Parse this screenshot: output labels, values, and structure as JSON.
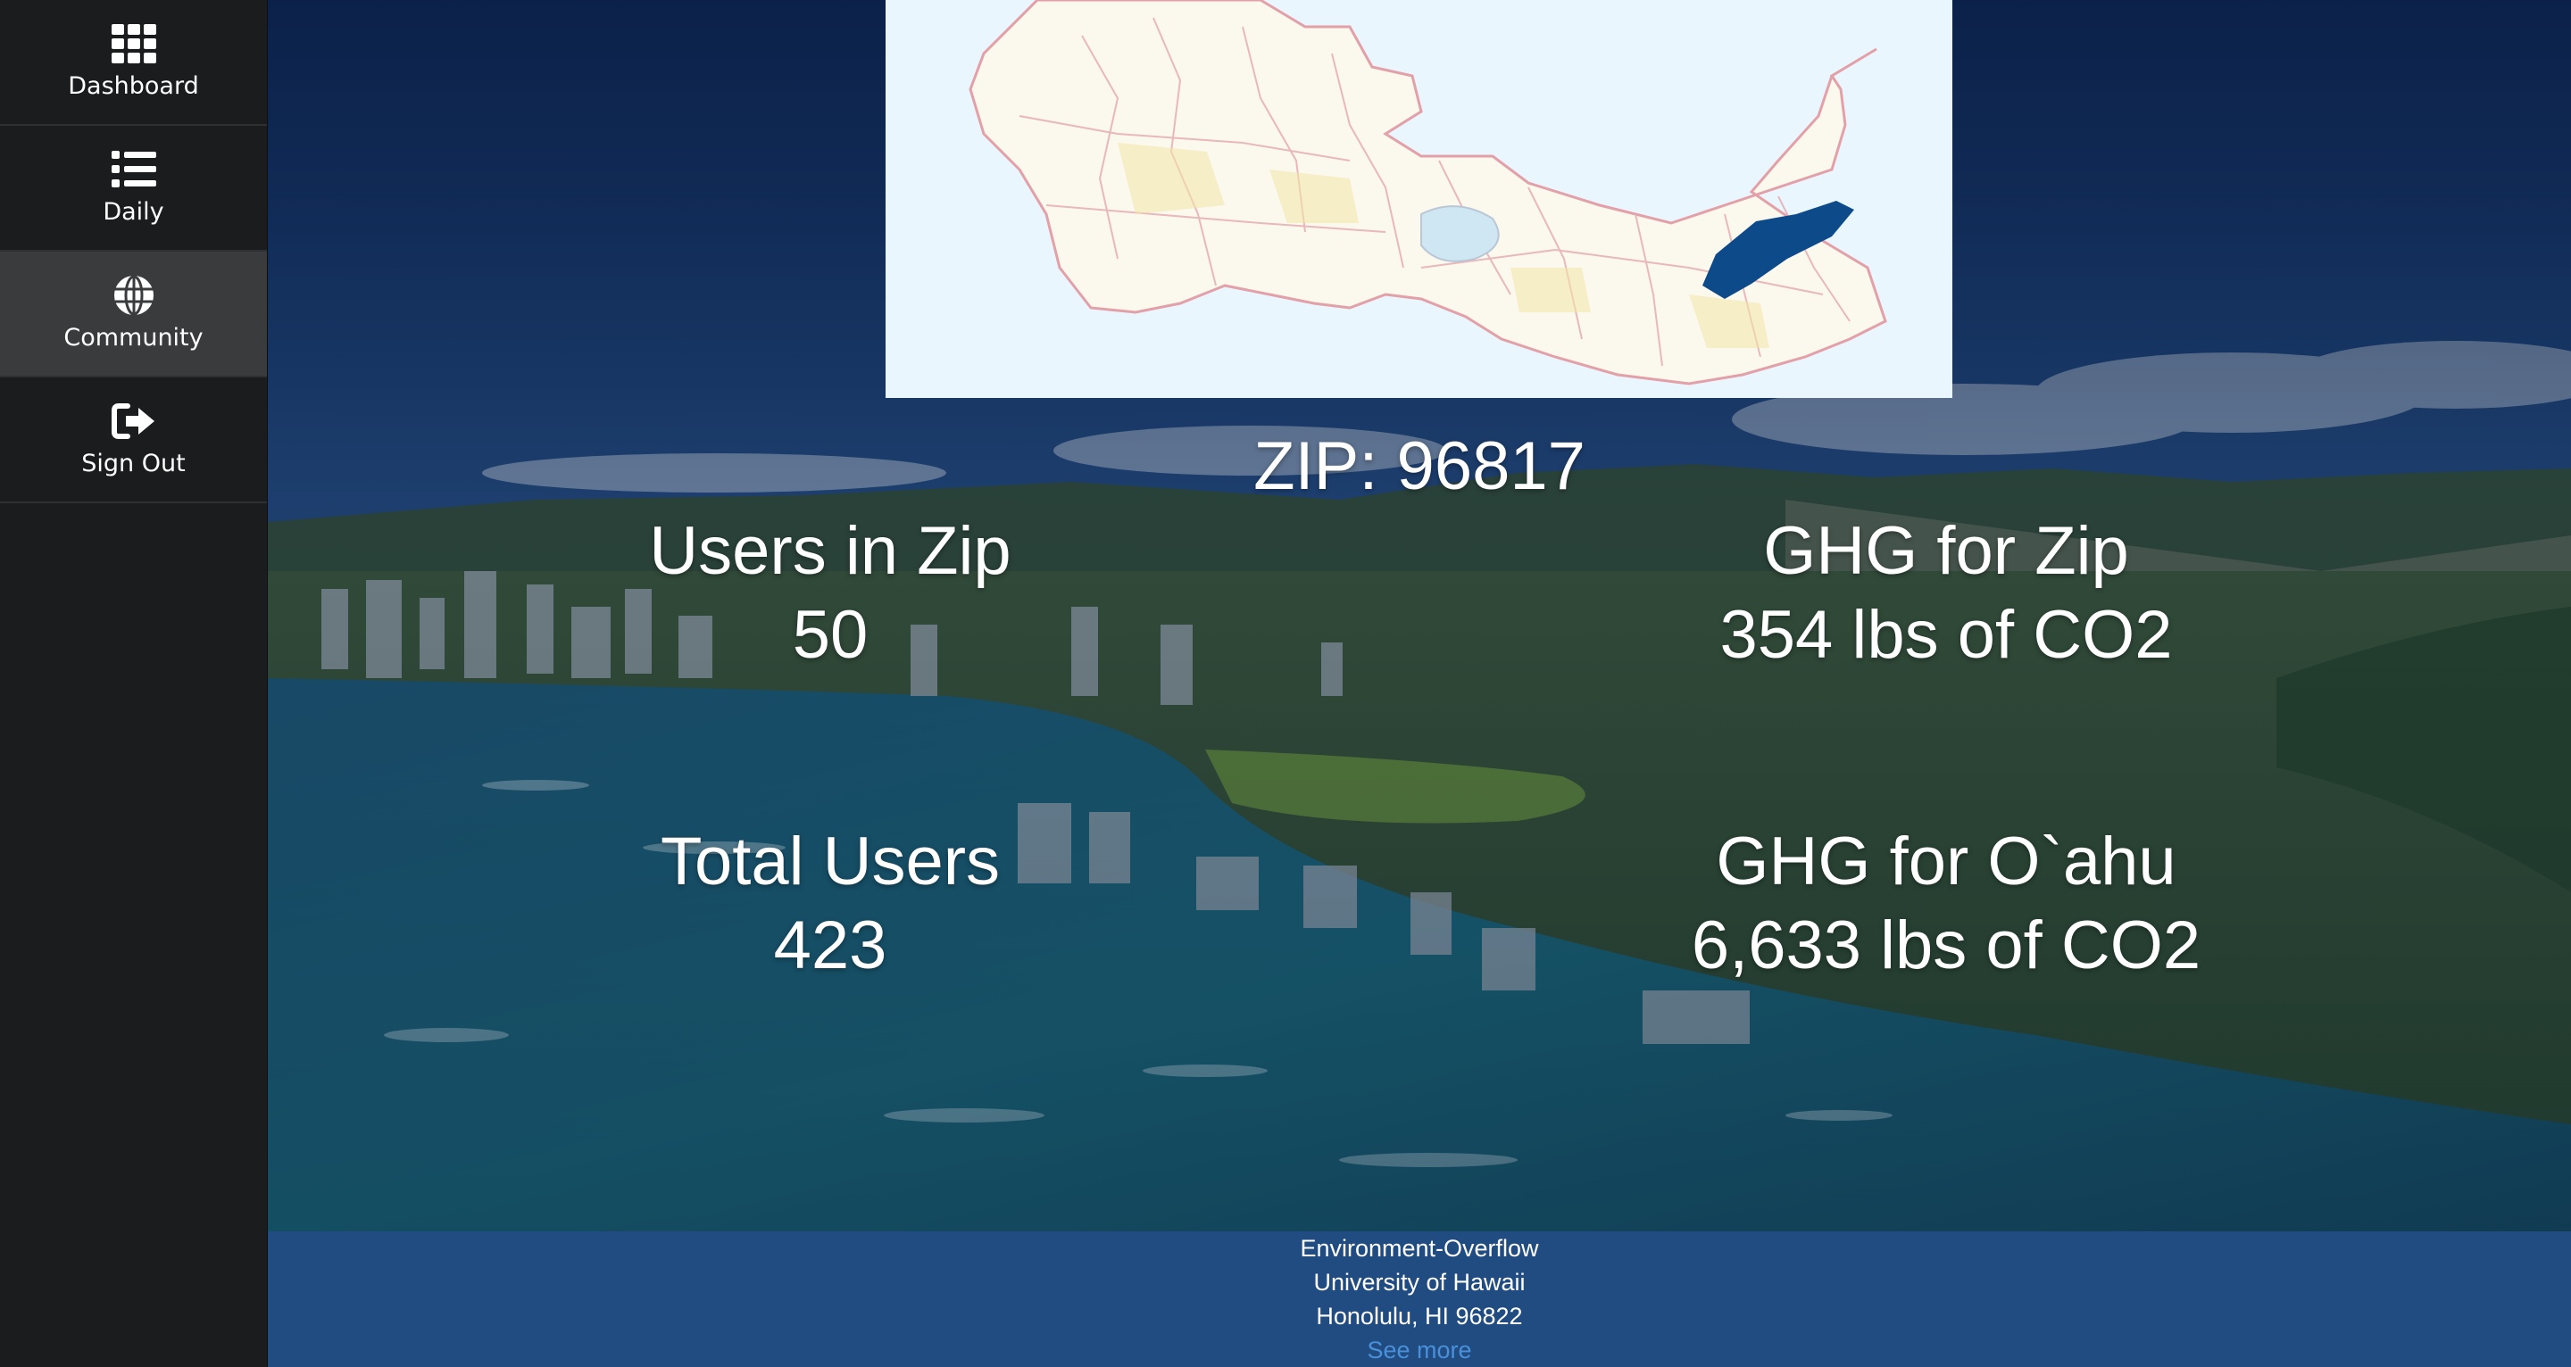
{
  "sidebar": {
    "items": [
      {
        "label": "Dashboard",
        "icon": "grid-icon",
        "active": false
      },
      {
        "label": "Daily",
        "icon": "list-icon",
        "active": false
      },
      {
        "label": "Community",
        "icon": "globe-icon",
        "active": true
      },
      {
        "label": "Sign Out",
        "icon": "sign-out-icon",
        "active": false
      }
    ]
  },
  "main": {
    "zip_heading": "ZIP: 96817",
    "stats": {
      "users_in_zip": {
        "label": "Users in Zip",
        "value": "50"
      },
      "ghg_for_zip": {
        "label": "GHG for Zip",
        "value": "354 lbs of CO2"
      },
      "total_users": {
        "label": "Total Users",
        "value": "423"
      },
      "ghg_for_oahu": {
        "label": "GHG for O`ahu",
        "value": "6,633 lbs of CO2"
      }
    },
    "map": {
      "highlight_color": "#0d4a8a",
      "land_color": "#fbf8ee",
      "water_color": "#eaf6fd"
    }
  },
  "footer": {
    "line1": "Environment-Overflow",
    "line2": "University of Hawaii",
    "line3": "Honolulu, HI 96822",
    "link": "See more"
  },
  "colors": {
    "sidebar_bg": "#1b1c1d",
    "sidebar_active": "#3a3b3d",
    "footer_bg": "#204c82",
    "link": "#4a90d9"
  }
}
